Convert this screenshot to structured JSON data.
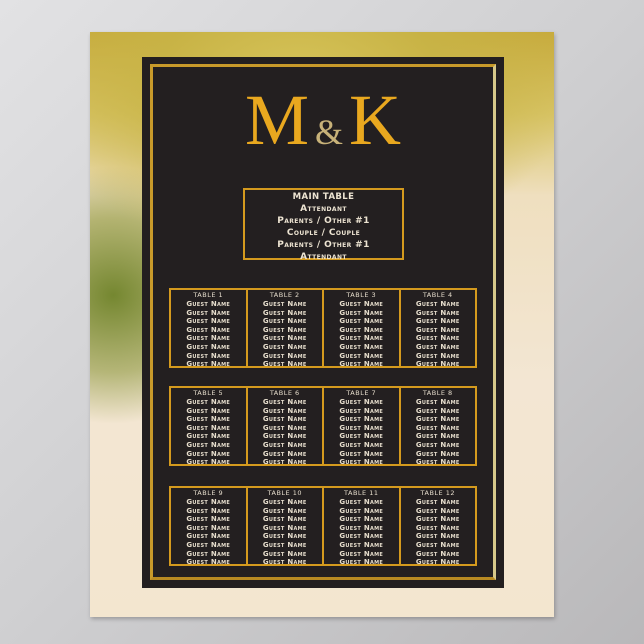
{
  "monogram": {
    "left": "M",
    "amp": "&",
    "right": "K"
  },
  "main_table": {
    "title": "MAIN TABLE",
    "seats": [
      "Attendant",
      "Parents / Other #1",
      "Couple / Couple",
      "Parents / Other #1",
      "Attendant"
    ]
  },
  "tables": [
    {
      "label": "TABLE 1",
      "guests": [
        "Guest Name",
        "Guest Name",
        "Guest Name",
        "Guest Name",
        "Guest Name",
        "Guest Name",
        "Guest Name",
        "Guest Name"
      ]
    },
    {
      "label": "TABLE 2",
      "guests": [
        "Guest Name",
        "Guest Name",
        "Guest Name",
        "Guest Name",
        "Guest Name",
        "Guest Name",
        "Guest Name",
        "Guest Name"
      ]
    },
    {
      "label": "TABLE 3",
      "guests": [
        "Guest Name",
        "Guest Name",
        "Guest Name",
        "Guest Name",
        "Guest Name",
        "Guest Name",
        "Guest Name",
        "Guest Name"
      ]
    },
    {
      "label": "TABLE 4",
      "guests": [
        "Guest Name",
        "Guest Name",
        "Guest Name",
        "Guest Name",
        "Guest Name",
        "Guest Name",
        "Guest Name",
        "Guest Name"
      ]
    },
    {
      "label": "TABLE 5",
      "guests": [
        "Guest Name",
        "Guest Name",
        "Guest Name",
        "Guest Name",
        "Guest Name",
        "Guest Name",
        "Guest Name",
        "Guest Name"
      ]
    },
    {
      "label": "TABLE 6",
      "guests": [
        "Guest Name",
        "Guest Name",
        "Guest Name",
        "Guest Name",
        "Guest Name",
        "Guest Name",
        "Guest Name",
        "Guest Name"
      ]
    },
    {
      "label": "TABLE 7",
      "guests": [
        "Guest Name",
        "Guest Name",
        "Guest Name",
        "Guest Name",
        "Guest Name",
        "Guest Name",
        "Guest Name",
        "Guest Name"
      ]
    },
    {
      "label": "TABLE 8",
      "guests": [
        "Guest Name",
        "Guest Name",
        "Guest Name",
        "Guest Name",
        "Guest Name",
        "Guest Name",
        "Guest Name",
        "Guest Name"
      ]
    },
    {
      "label": "TABLE 9",
      "guests": [
        "Guest Name",
        "Guest Name",
        "Guest Name",
        "Guest Name",
        "Guest Name",
        "Guest Name",
        "Guest Name",
        "Guest Name"
      ]
    },
    {
      "label": "TABLE 10",
      "guests": [
        "Guest Name",
        "Guest Name",
        "Guest Name",
        "Guest Name",
        "Guest Name",
        "Guest Name",
        "Guest Name",
        "Guest Name"
      ]
    },
    {
      "label": "TABLE 11",
      "guests": [
        "Guest Name",
        "Guest Name",
        "Guest Name",
        "Guest Name",
        "Guest Name",
        "Guest Name",
        "Guest Name",
        "Guest Name"
      ]
    },
    {
      "label": "TABLE 12",
      "guests": [
        "Guest Name",
        "Guest Name",
        "Guest Name",
        "Guest Name",
        "Guest Name",
        "Guest Name",
        "Guest Name",
        "Guest Name"
      ]
    }
  ],
  "colors": {
    "panel": "#231f20",
    "gold": "#e9a81f",
    "border": "#d49a1e",
    "text": "#ede4d2"
  }
}
